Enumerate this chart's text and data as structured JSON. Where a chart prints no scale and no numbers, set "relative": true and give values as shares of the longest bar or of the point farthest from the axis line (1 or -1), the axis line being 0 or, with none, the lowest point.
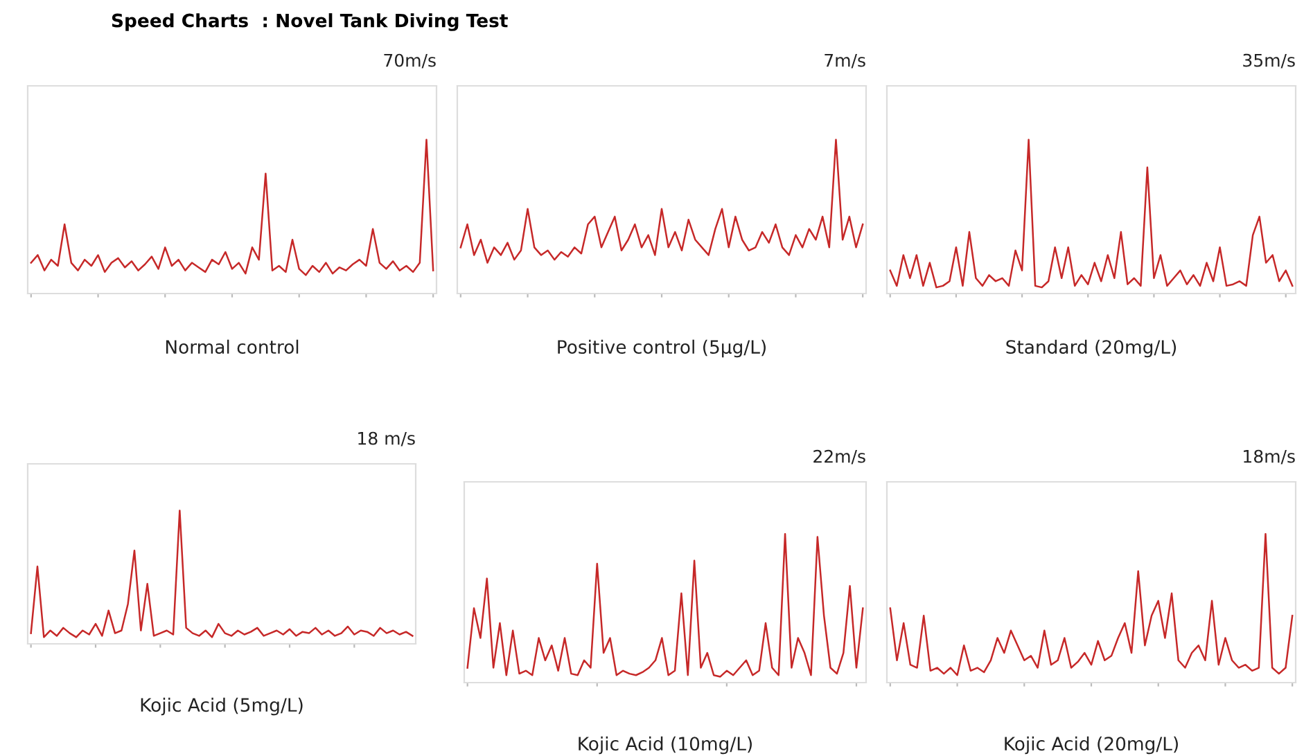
{
  "chart_data": [
    {
      "type": "line",
      "title": "70m/s",
      "xlabel": "Normal control",
      "annotations": [
        "Speed Charts  : Novel Tank Diving Test"
      ],
      "relative": true,
      "tick_labels": false,
      "categories": [
        null,
        null,
        null,
        null,
        null,
        null,
        null,
        null,
        null,
        null,
        null,
        null,
        null,
        null,
        null,
        null,
        null,
        null,
        null,
        null,
        null,
        null,
        null,
        null,
        null,
        null,
        null,
        null,
        null,
        null,
        null,
        null,
        null,
        null,
        null,
        null,
        null,
        null,
        null,
        null,
        null,
        null,
        null,
        null,
        null,
        null,
        null,
        null,
        null,
        null,
        null,
        null,
        null,
        null,
        null,
        null,
        null,
        null,
        null,
        null,
        null
      ],
      "series": [
        {
          "color": "#c62828",
          "values": [
            0.2,
            0.25,
            0.15,
            0.22,
            0.18,
            0.45,
            0.2,
            0.15,
            0.22,
            0.18,
            0.25,
            0.14,
            0.2,
            0.23,
            0.17,
            0.21,
            0.15,
            0.19,
            0.24,
            0.16,
            0.3,
            0.18,
            0.22,
            0.15,
            0.2,
            0.17,
            0.14,
            0.22,
            0.19,
            0.27,
            0.16,
            0.2,
            0.13,
            0.3,
            0.22,
            0.78,
            0.15,
            0.18,
            0.14,
            0.35,
            0.16,
            0.12,
            0.18,
            0.14,
            0.2,
            0.13,
            0.17,
            0.15,
            0.19,
            0.22,
            0.18,
            0.42,
            0.2,
            0.16,
            0.21,
            0.15,
            0.18,
            0.14,
            0.2,
            1.0,
            0.15
          ]
        }
      ]
    },
    {
      "type": "line",
      "title": "7m/s",
      "xlabel": "Positive control (5µg/L)",
      "relative": true,
      "tick_labels": false,
      "categories": [
        null,
        null,
        null,
        null,
        null,
        null,
        null,
        null,
        null,
        null,
        null,
        null,
        null,
        null,
        null,
        null,
        null,
        null,
        null,
        null,
        null,
        null,
        null,
        null,
        null,
        null,
        null,
        null,
        null,
        null,
        null,
        null,
        null,
        null,
        null,
        null,
        null,
        null,
        null,
        null,
        null,
        null,
        null,
        null,
        null,
        null,
        null,
        null,
        null,
        null,
        null,
        null,
        null,
        null,
        null,
        null,
        null,
        null,
        null,
        null,
        null
      ],
      "series": [
        {
          "color": "#c62828",
          "values": [
            0.3,
            0.45,
            0.25,
            0.35,
            0.2,
            0.3,
            0.25,
            0.33,
            0.22,
            0.28,
            0.55,
            0.3,
            0.25,
            0.28,
            0.22,
            0.27,
            0.24,
            0.3,
            0.26,
            0.45,
            0.5,
            0.3,
            0.4,
            0.5,
            0.28,
            0.35,
            0.45,
            0.3,
            0.38,
            0.25,
            0.55,
            0.3,
            0.4,
            0.28,
            0.48,
            0.35,
            0.3,
            0.25,
            0.42,
            0.55,
            0.3,
            0.5,
            0.35,
            0.28,
            0.3,
            0.4,
            0.33,
            0.45,
            0.3,
            0.25,
            0.38,
            0.3,
            0.42,
            0.35,
            0.5,
            0.3,
            1.0,
            0.35,
            0.5,
            0.3,
            0.45
          ]
        }
      ]
    },
    {
      "type": "line",
      "title": "35m/s",
      "xlabel": "Standard (20mg/L)",
      "relative": true,
      "tick_labels": false,
      "categories": [
        null,
        null,
        null,
        null,
        null,
        null,
        null,
        null,
        null,
        null,
        null,
        null,
        null,
        null,
        null,
        null,
        null,
        null,
        null,
        null,
        null,
        null,
        null,
        null,
        null,
        null,
        null,
        null,
        null,
        null,
        null,
        null,
        null,
        null,
        null,
        null,
        null,
        null,
        null,
        null,
        null,
        null,
        null,
        null,
        null,
        null,
        null,
        null,
        null,
        null,
        null,
        null,
        null,
        null,
        null,
        null,
        null,
        null,
        null,
        null,
        null,
        null
      ],
      "series": [
        {
          "color": "#c62828",
          "values": [
            0.15,
            0.05,
            0.25,
            0.1,
            0.25,
            0.05,
            0.2,
            0.04,
            0.05,
            0.08,
            0.3,
            0.05,
            0.4,
            0.1,
            0.05,
            0.12,
            0.08,
            0.1,
            0.05,
            0.28,
            0.15,
            1.0,
            0.05,
            0.04,
            0.08,
            0.3,
            0.1,
            0.3,
            0.05,
            0.12,
            0.06,
            0.2,
            0.08,
            0.25,
            0.1,
            0.4,
            0.06,
            0.1,
            0.05,
            0.82,
            0.1,
            0.25,
            0.05,
            0.1,
            0.15,
            0.06,
            0.12,
            0.05,
            0.2,
            0.08,
            0.3,
            0.05,
            0.06,
            0.08,
            0.05,
            0.38,
            0.5,
            0.2,
            0.25,
            0.08,
            0.15,
            0.05
          ]
        }
      ]
    },
    {
      "type": "line",
      "title": "18 m/s",
      "xlabel": "Kojic Acid (5mg/L)",
      "relative": true,
      "tick_labels": false,
      "categories": [
        null,
        null,
        null,
        null,
        null,
        null,
        null,
        null,
        null,
        null,
        null,
        null,
        null,
        null,
        null,
        null,
        null,
        null,
        null,
        null,
        null,
        null,
        null,
        null,
        null,
        null,
        null,
        null,
        null,
        null,
        null,
        null,
        null,
        null,
        null,
        null,
        null,
        null,
        null,
        null,
        null,
        null,
        null,
        null,
        null,
        null,
        null,
        null,
        null,
        null,
        null,
        null,
        null,
        null,
        null,
        null,
        null,
        null,
        null,
        null
      ],
      "series": [
        {
          "color": "#c62828",
          "values": [
            0.08,
            0.58,
            0.05,
            0.1,
            0.06,
            0.12,
            0.08,
            0.05,
            0.1,
            0.07,
            0.15,
            0.06,
            0.25,
            0.08,
            0.1,
            0.3,
            0.7,
            0.1,
            0.45,
            0.06,
            0.08,
            0.1,
            0.07,
            1.0,
            0.12,
            0.08,
            0.06,
            0.1,
            0.05,
            0.15,
            0.08,
            0.06,
            0.1,
            0.07,
            0.09,
            0.12,
            0.06,
            0.08,
            0.1,
            0.07,
            0.11,
            0.06,
            0.09,
            0.08,
            0.12,
            0.07,
            0.1,
            0.06,
            0.08,
            0.13,
            0.07,
            0.1,
            0.09,
            0.06,
            0.12,
            0.08,
            0.1,
            0.07,
            0.09,
            0.06
          ]
        }
      ]
    },
    {
      "type": "line",
      "title": "22m/s",
      "xlabel": "Kojic Acid (10mg/L)",
      "relative": true,
      "tick_labels": false,
      "categories": [
        null,
        null,
        null,
        null,
        null,
        null,
        null,
        null,
        null,
        null,
        null,
        null,
        null,
        null,
        null,
        null,
        null,
        null,
        null,
        null,
        null,
        null,
        null,
        null,
        null,
        null,
        null,
        null,
        null,
        null,
        null,
        null,
        null,
        null,
        null,
        null,
        null,
        null,
        null,
        null,
        null,
        null,
        null,
        null,
        null,
        null,
        null,
        null,
        null,
        null,
        null,
        null,
        null,
        null,
        null,
        null,
        null,
        null,
        null,
        null,
        null,
        null
      ],
      "series": [
        {
          "color": "#c62828",
          "values": [
            0.1,
            0.5,
            0.3,
            0.7,
            0.1,
            0.4,
            0.05,
            0.35,
            0.06,
            0.08,
            0.05,
            0.3,
            0.15,
            0.25,
            0.08,
            0.3,
            0.06,
            0.05,
            0.15,
            0.1,
            0.8,
            0.2,
            0.3,
            0.05,
            0.08,
            0.06,
            0.05,
            0.07,
            0.1,
            0.15,
            0.3,
            0.05,
            0.08,
            0.6,
            0.05,
            0.82,
            0.1,
            0.2,
            0.05,
            0.04,
            0.08,
            0.05,
            0.1,
            0.15,
            0.05,
            0.08,
            0.4,
            0.1,
            0.05,
            1.0,
            0.1,
            0.3,
            0.2,
            0.05,
            0.98,
            0.45,
            0.1,
            0.06,
            0.2,
            0.65,
            0.1,
            0.5
          ]
        }
      ]
    },
    {
      "type": "line",
      "title": "18m/s",
      "xlabel": "Kojic Acid (20mg/L)",
      "relative": true,
      "tick_labels": false,
      "categories": [
        null,
        null,
        null,
        null,
        null,
        null,
        null,
        null,
        null,
        null,
        null,
        null,
        null,
        null,
        null,
        null,
        null,
        null,
        null,
        null,
        null,
        null,
        null,
        null,
        null,
        null,
        null,
        null,
        null,
        null,
        null,
        null,
        null,
        null,
        null,
        null,
        null,
        null,
        null,
        null,
        null,
        null,
        null,
        null,
        null,
        null,
        null,
        null,
        null,
        null,
        null,
        null,
        null,
        null,
        null,
        null,
        null,
        null,
        null,
        null,
        null
      ],
      "series": [
        {
          "color": "#c62828",
          "values": [
            0.5,
            0.15,
            0.4,
            0.12,
            0.1,
            0.45,
            0.08,
            0.1,
            0.06,
            0.1,
            0.05,
            0.25,
            0.08,
            0.1,
            0.07,
            0.15,
            0.3,
            0.2,
            0.35,
            0.25,
            0.15,
            0.18,
            0.1,
            0.35,
            0.12,
            0.15,
            0.3,
            0.1,
            0.14,
            0.2,
            0.12,
            0.28,
            0.15,
            0.18,
            0.3,
            0.4,
            0.2,
            0.75,
            0.25,
            0.45,
            0.55,
            0.3,
            0.6,
            0.15,
            0.1,
            0.2,
            0.25,
            0.15,
            0.55,
            0.12,
            0.3,
            0.15,
            0.1,
            0.12,
            0.08,
            0.1,
            1.0,
            0.1,
            0.06,
            0.1,
            0.45
          ]
        }
      ]
    }
  ]
}
